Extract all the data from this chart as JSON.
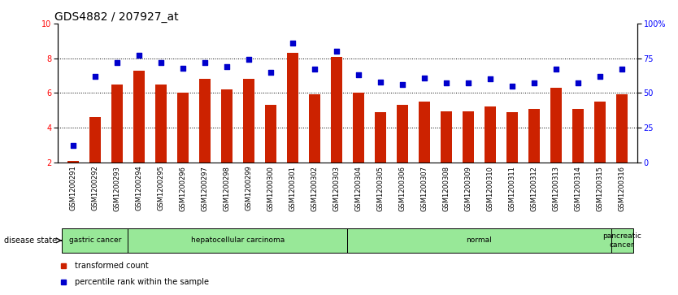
{
  "title": "GDS4882 / 207927_at",
  "samples": [
    "GSM1200291",
    "GSM1200292",
    "GSM1200293",
    "GSM1200294",
    "GSM1200295",
    "GSM1200296",
    "GSM1200297",
    "GSM1200298",
    "GSM1200299",
    "GSM1200300",
    "GSM1200301",
    "GSM1200302",
    "GSM1200303",
    "GSM1200304",
    "GSM1200305",
    "GSM1200306",
    "GSM1200307",
    "GSM1200308",
    "GSM1200309",
    "GSM1200310",
    "GSM1200311",
    "GSM1200312",
    "GSM1200313",
    "GSM1200314",
    "GSM1200315",
    "GSM1200316"
  ],
  "transformed_count": [
    2.1,
    4.6,
    6.5,
    7.3,
    6.5,
    6.0,
    6.8,
    6.2,
    6.8,
    5.3,
    8.3,
    5.9,
    8.1,
    6.0,
    4.9,
    5.3,
    5.5,
    4.95,
    4.95,
    5.2,
    4.9,
    5.1,
    6.3,
    5.1,
    5.5,
    5.9
  ],
  "percentile_rank_pct": [
    12,
    62,
    72,
    77,
    72,
    68,
    72,
    69,
    74,
    65,
    86,
    67,
    80,
    63,
    58,
    56,
    61,
    57,
    57,
    60,
    55,
    57,
    67,
    57,
    62,
    67
  ],
  "bar_color": "#CC2200",
  "dot_color": "#0000CC",
  "ylim_left": [
    2,
    10
  ],
  "ylim_right": [
    0,
    100
  ],
  "yticks_left": [
    2,
    4,
    6,
    8,
    10
  ],
  "yticks_right": [
    0,
    25,
    50,
    75,
    100
  ],
  "groups": [
    {
      "label": "gastric cancer",
      "start": 0,
      "end": 3,
      "color": "#98E898"
    },
    {
      "label": "hepatocellular carcinoma",
      "start": 3,
      "end": 13,
      "color": "#98E898"
    },
    {
      "label": "normal",
      "start": 13,
      "end": 25,
      "color": "#98E898"
    },
    {
      "label": "pancreatic\ncancer",
      "start": 25,
      "end": 26,
      "color": "#98E898"
    }
  ],
  "title_fontsize": 10,
  "tick_fontsize": 7,
  "label_fontsize": 7
}
